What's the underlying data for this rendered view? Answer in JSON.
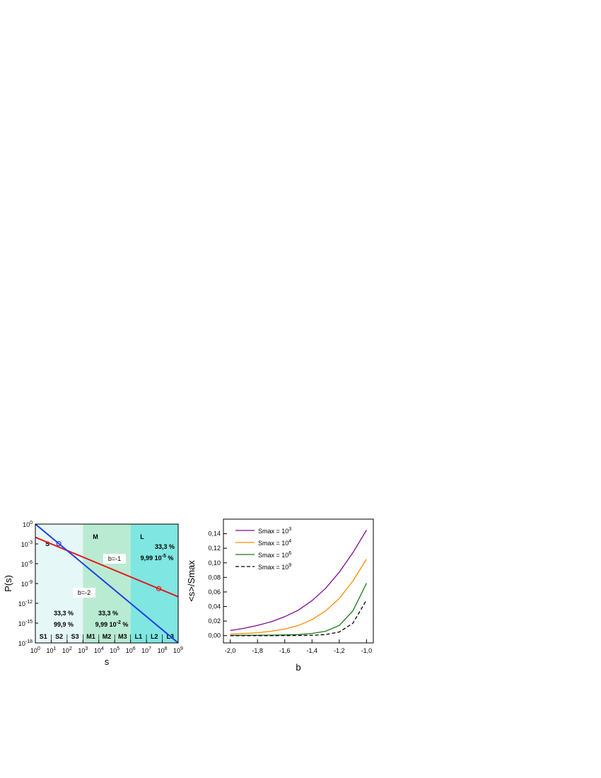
{
  "chart_data": [
    {
      "type": "line",
      "xlabel": "s",
      "ylabel": "P(s)",
      "x_scale": "log10",
      "y_scale": "log10",
      "xlim": [
        1,
        1000000000
      ],
      "ylim": [
        1e-18,
        1
      ],
      "x_ticks": [
        {
          "base": "10",
          "exp": "0"
        },
        {
          "base": "10",
          "exp": "1"
        },
        {
          "base": "10",
          "exp": "2"
        },
        {
          "base": "10",
          "exp": "3"
        },
        {
          "base": "10",
          "exp": "4"
        },
        {
          "base": "10",
          "exp": "5"
        },
        {
          "base": "10",
          "exp": "6"
        },
        {
          "base": "10",
          "exp": "7"
        },
        {
          "base": "10",
          "exp": "8"
        },
        {
          "base": "10",
          "exp": "9"
        }
      ],
      "y_ticks": [
        {
          "base": "10",
          "exp": "0"
        },
        {
          "base": "10",
          "exp": "-3"
        },
        {
          "base": "10",
          "exp": "-6"
        },
        {
          "base": "10",
          "exp": "-9"
        },
        {
          "base": "10",
          "exp": "-12"
        },
        {
          "base": "10",
          "exp": "-15"
        },
        {
          "base": "10",
          "exp": "-18"
        }
      ],
      "regions": [
        {
          "name": "S",
          "from": 1,
          "to": 1000,
          "color": "#e6f7f7",
          "pct_red": "33,3 %",
          "pct_blue": "99,9 %",
          "pct_blue_exp": ""
        },
        {
          "name": "M",
          "from": 1000,
          "to": 1000000,
          "color": "#b9ebd2",
          "pct_red": "33,3 %",
          "pct_blue": "9,99  10",
          "pct_blue_exp": "-2",
          "pct_blue_suffix": " %"
        },
        {
          "name": "L",
          "from": 1000000,
          "to": 1000000000,
          "color": "#7fe6e1",
          "pct_red": "33,3 %",
          "pct_blue": "9,99  10",
          "pct_blue_exp": "-5",
          "pct_blue_suffix": " %"
        }
      ],
      "sub_regions": [
        "S1",
        "S2",
        "S3",
        "M1",
        "M2",
        "M3",
        "L1",
        "L2",
        "L3"
      ],
      "series": [
        {
          "label": "b=-1",
          "color": "#e31a1c",
          "exponent": -1,
          "prefactor_log10": -2,
          "marker_x": 60000000
        },
        {
          "label": "b=-2",
          "color": "#1f3fe0",
          "exponent": -2,
          "prefactor_log10": 0,
          "marker_x": 30
        }
      ]
    },
    {
      "type": "line",
      "xlabel": "b",
      "ylabel": "<s>/Smax",
      "xlim": [
        -2.05,
        -0.95
      ],
      "ylim": [
        -0.01,
        0.16
      ],
      "x_ticks": [
        "-2,0",
        "-1,8",
        "-1,6",
        "-1,4",
        "-1,2",
        "-1,0"
      ],
      "x_tick_values": [
        -2.0,
        -1.8,
        -1.6,
        -1.4,
        -1.2,
        -1.0
      ],
      "y_ticks": [
        "0,00",
        "0,02",
        "0,04",
        "0,06",
        "0,08",
        "0,10",
        "0,12",
        "0,14"
      ],
      "y_tick_values": [
        0,
        0.02,
        0.04,
        0.06,
        0.08,
        0.1,
        0.12,
        0.14
      ],
      "legend_position": "top-left",
      "series": [
        {
          "name": "Smax = 10",
          "exp": "3",
          "color": "#7b0b8c",
          "dash": "",
          "x": [
            -2.0,
            -1.9,
            -1.8,
            -1.7,
            -1.6,
            -1.5,
            -1.4,
            -1.3,
            -1.2,
            -1.1,
            -1.0
          ],
          "y": [
            0.007,
            0.01,
            0.014,
            0.019,
            0.026,
            0.035,
            0.048,
            0.065,
            0.087,
            0.114,
            0.145
          ]
        },
        {
          "name": "Smax = 10",
          "exp": "4",
          "color": "#ff8c00",
          "dash": "",
          "x": [
            -2.0,
            -1.9,
            -1.8,
            -1.7,
            -1.6,
            -1.5,
            -1.4,
            -1.3,
            -1.2,
            -1.1,
            -1.0
          ],
          "y": [
            0.002,
            0.003,
            0.004,
            0.006,
            0.009,
            0.014,
            0.022,
            0.034,
            0.051,
            0.075,
            0.105
          ]
        },
        {
          "name": "Smax = 10",
          "exp": "6",
          "color": "#1a7a1a",
          "dash": "",
          "x": [
            -2.0,
            -1.9,
            -1.8,
            -1.7,
            -1.6,
            -1.5,
            -1.4,
            -1.3,
            -1.2,
            -1.1,
            -1.0
          ],
          "y": [
            0.0003,
            0.0004,
            0.0005,
            0.0007,
            0.001,
            0.0015,
            0.003,
            0.006,
            0.014,
            0.034,
            0.072
          ]
        },
        {
          "name": "Smax = 10",
          "exp": "9",
          "color": "#000000",
          "dash": "5,3",
          "x": [
            -2.0,
            -1.9,
            -1.8,
            -1.7,
            -1.6,
            -1.5,
            -1.4,
            -1.3,
            -1.2,
            -1.1,
            -1.0
          ],
          "y": [
            0.0,
            0.0,
            0.0,
            0.0,
            0.0001,
            0.0002,
            0.0005,
            0.0015,
            0.005,
            0.017,
            0.049
          ]
        }
      ]
    }
  ]
}
